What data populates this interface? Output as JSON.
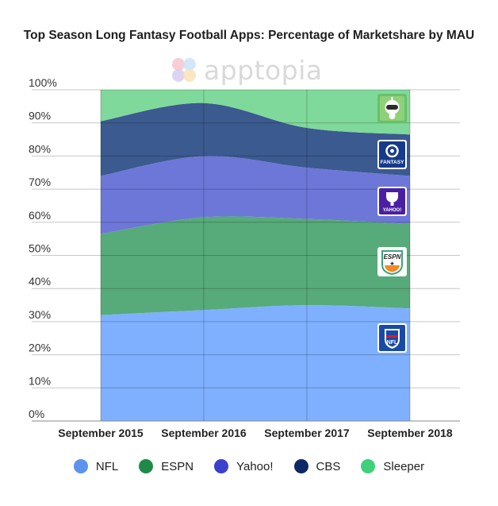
{
  "chart_data": {
    "type": "area",
    "stacked": true,
    "title": "Top Season Long Fantasy Football Apps: Percentage of Marketshare by MAU",
    "xlabel": "",
    "ylabel": "",
    "categories": [
      "September 2015",
      "September 2016",
      "September 2017",
      "September 2018"
    ],
    "ylim": [
      0,
      100
    ],
    "yticks": [
      "0%",
      "10%",
      "20%",
      "30%",
      "40%",
      "50%",
      "60%",
      "70%",
      "80%",
      "90%",
      "100%"
    ],
    "grid": true,
    "legend_position": "bottom",
    "series": [
      {
        "name": "NFL",
        "color": "#7fb0ff",
        "legend_color": "#5b93ee",
        "values": [
          32,
          33.5,
          35,
          34
        ]
      },
      {
        "name": "ESPN",
        "color": "#57aa79",
        "legend_color": "#1f8a48",
        "values": [
          24.5,
          28,
          26,
          25.5
        ]
      },
      {
        "name": "Yahoo!",
        "color": "#6d77d8",
        "legend_color": "#3d3fce",
        "values": [
          17.5,
          18.5,
          15.5,
          14.5
        ]
      },
      {
        "name": "CBS",
        "color": "#3b5a8f",
        "legend_color": "#0d2a66",
        "values": [
          16.5,
          16,
          12,
          12.5
        ]
      },
      {
        "name": "Sleeper",
        "color": "#7fd99a",
        "legend_color": "#3fd17a",
        "values": [
          9.5,
          4,
          11.5,
          13.5
        ]
      }
    ],
    "app_icons": [
      "sleeper-icon",
      "cbs-fantasy-icon",
      "yahoo-fantasy-icon",
      "espn-fantasy-icon",
      "nfl-fantasy-icon"
    ],
    "icon_labels": {
      "cbs": "FANTASY",
      "yahoo": "YAHOO!",
      "espn": "ESPN",
      "nfl": "NFL"
    }
  },
  "brand": {
    "name": "apptopia"
  }
}
